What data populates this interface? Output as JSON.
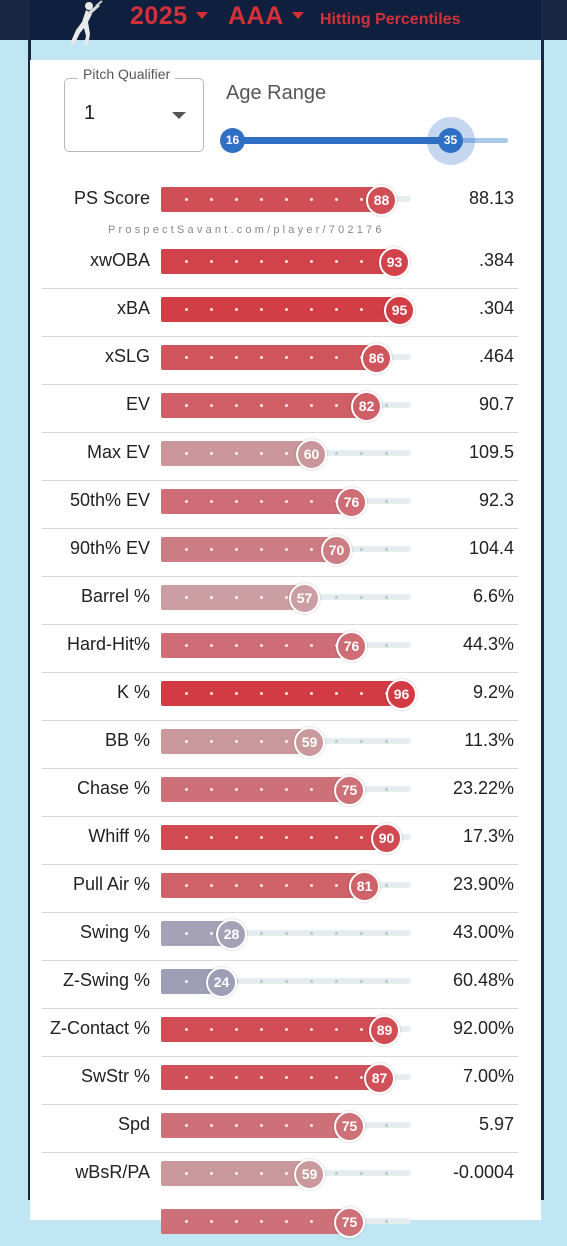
{
  "header": {
    "year": "2025",
    "level": "AAA",
    "title": "Hitting Percentiles"
  },
  "filters": {
    "pitch_qualifier_label": "Pitch Qualifier",
    "pitch_qualifier_value": "1",
    "age_range_label": "Age Range",
    "age_min": "16",
    "age_max": "35"
  },
  "watermark": "ProspectSavant.com/player/702176",
  "colors": {
    "header_bg": "#1a2744",
    "accent_red": "#d3303a",
    "slider_blue": "#2f6fc4"
  },
  "metrics": [
    {
      "label": "PS Score",
      "percentile": 88,
      "value": "88.13"
    },
    {
      "label": "xwOBA",
      "percentile": 93,
      "value": ".384"
    },
    {
      "label": "xBA",
      "percentile": 95,
      "value": ".304"
    },
    {
      "label": "xSLG",
      "percentile": 86,
      "value": ".464"
    },
    {
      "label": "EV",
      "percentile": 82,
      "value": "90.7"
    },
    {
      "label": "Max EV",
      "percentile": 60,
      "value": "109.5"
    },
    {
      "label": "50th% EV",
      "percentile": 76,
      "value": "92.3"
    },
    {
      "label": "90th% EV",
      "percentile": 70,
      "value": "104.4"
    },
    {
      "label": "Barrel %",
      "percentile": 57,
      "value": "6.6%"
    },
    {
      "label": "Hard-Hit%",
      "percentile": 76,
      "value": "44.3%"
    },
    {
      "label": "K %",
      "percentile": 96,
      "value": "9.2%"
    },
    {
      "label": "BB %",
      "percentile": 59,
      "value": "11.3%"
    },
    {
      "label": "Chase %",
      "percentile": 75,
      "value": "23.22%"
    },
    {
      "label": "Whiff %",
      "percentile": 90,
      "value": "17.3%"
    },
    {
      "label": "Pull Air %",
      "percentile": 81,
      "value": "23.90%"
    },
    {
      "label": "Swing %",
      "percentile": 28,
      "value": "43.00%"
    },
    {
      "label": "Z-Swing %",
      "percentile": 24,
      "value": "60.48%"
    },
    {
      "label": "Z-Contact %",
      "percentile": 89,
      "value": "92.00%"
    },
    {
      "label": "SwStr %",
      "percentile": 87,
      "value": "7.00%"
    },
    {
      "label": "Spd",
      "percentile": 75,
      "value": "5.97"
    },
    {
      "label": "wBsR/PA",
      "percentile": 59,
      "value": "-0.0004"
    },
    {
      "label": "",
      "percentile": 75,
      "value": ""
    }
  ]
}
